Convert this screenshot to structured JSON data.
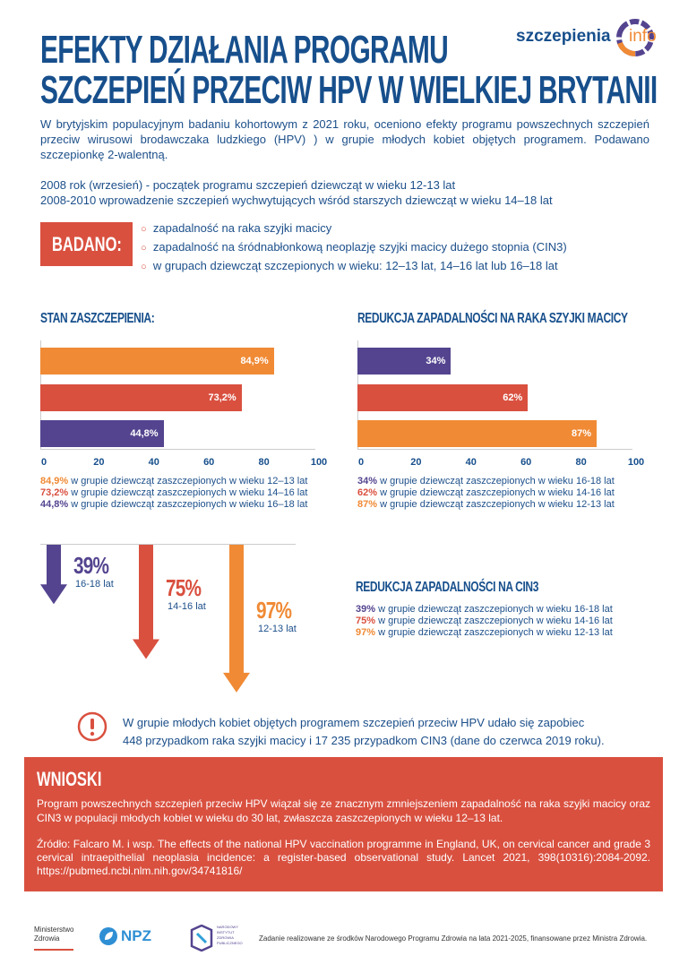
{
  "colors": {
    "blue": "#174f8c",
    "orange": "#f08a35",
    "red": "#d9503f",
    "purple": "#54448f"
  },
  "logo": {
    "text_main": "szczepienia",
    "text_accent": "info"
  },
  "title": {
    "line1": "EFEKTY DZIAŁANIA PROGRAMU",
    "line2": "SZCZEPIEŃ PRZECIW HPV W WIELKIEJ BRYTANII"
  },
  "intro": "W brytyjskim populacyjnym badaniu kohortowym z 2021 roku, oceniono efekty programu powszechnych szczepień przeciw wirusowi brodawczaka ludzkiego (HPV) ) w grupie młodych kobiet objętych programem. Podawano szczepionkę 2-walentną.",
  "timeline": [
    "2008 rok (wrzesień) - początek programu szczepień dziewcząt w wieku 12-13 lat",
    "2008-2010 wprowadzenie szczepień wychwytujących wśród starszych dziewcząt w wieku 14–18 lat"
  ],
  "badano": {
    "label": "BADANO:",
    "items": [
      "zapadalność na raka szyjki macicy",
      "zapadalność na śródnabłonkową neoplazję szyjki macicy dużego stopnia (CIN3)",
      "w grupach dziewcząt szczepionych w wieku: 12–13 lat, 14–16 lat lub 16–18 lat"
    ]
  },
  "chart_data": [
    {
      "type": "bar",
      "orientation": "horizontal",
      "title": "STAN ZASZCZEPIENIA:",
      "xlim": [
        0,
        100
      ],
      "ticks": [
        "0",
        "20",
        "40",
        "60",
        "80",
        "100"
      ],
      "bars": [
        {
          "value": 84.9,
          "label": "84,9%",
          "color": "#f08a35"
        },
        {
          "value": 73.2,
          "label": "73,2%",
          "color": "#d9503f"
        },
        {
          "value": 44.8,
          "label": "44,8%",
          "color": "#54448f"
        }
      ],
      "legend": [
        {
          "value": "84,9%",
          "text": "w grupie dziewcząt zaszczepionych w wieku 12–13 lat",
          "color": "#f08a35"
        },
        {
          "value": "73,2%",
          "text": "w grupie dziewcząt zaszczepionych w wieku 14–16 lat",
          "color": "#d9503f"
        },
        {
          "value": "44,8%",
          "text": "w grupie dziewcząt zaszczepionych w wieku 16–18 lat",
          "color": "#54448f"
        }
      ]
    },
    {
      "type": "bar",
      "orientation": "horizontal",
      "title": "REDUKCJA ZAPADALNOŚCI NA RAKA SZYJKI MACICY",
      "xlim": [
        0,
        100
      ],
      "ticks": [
        "0",
        "20",
        "40",
        "60",
        "80",
        "100"
      ],
      "bars": [
        {
          "value": 34,
          "label": "34%",
          "color": "#54448f"
        },
        {
          "value": 62,
          "label": "62%",
          "color": "#d9503f"
        },
        {
          "value": 87,
          "label": "87%",
          "color": "#f08a35"
        }
      ],
      "legend": [
        {
          "value": "34%",
          "text": "w grupie dziewcząt zaszczepionych w wieku 16-18 lat",
          "color": "#54448f"
        },
        {
          "value": "62%",
          "text": "w grupie dziewcząt zaszczepionych w wieku 14-16 lat",
          "color": "#d9503f"
        },
        {
          "value": "87%",
          "text": "w grupie dziewcząt zaszczepionych w wieku 12-13 lat",
          "color": "#f08a35"
        }
      ]
    },
    {
      "type": "bar",
      "orientation": "vertical-arrows",
      "title": "REDUKCJA ZAPADALNOŚCI NA CIN3",
      "bars": [
        {
          "value": 39,
          "label": "39%",
          "group": "16-18 lat",
          "color": "#54448f"
        },
        {
          "value": 75,
          "label": "75%",
          "group": "14-16 lat",
          "color": "#d9503f"
        },
        {
          "value": 97,
          "label": "97%",
          "group": "12-13 lat",
          "color": "#f08a35"
        }
      ],
      "legend": [
        {
          "value": "39%",
          "text": "w grupie dziewcząt zaszczepionych w wieku 16-18 lat",
          "color": "#54448f"
        },
        {
          "value": "75%",
          "text": "w grupie dziewcząt zaszczepionych w wieku 14-16 lat",
          "color": "#d9503f"
        },
        {
          "value": "97%",
          "text": "w grupie dziewcząt zaszczepionych w wieku 12-13 lat",
          "color": "#f08a35"
        }
      ]
    }
  ],
  "alert": {
    "icon": "exclamation-circle-icon",
    "line1": "W grupie młodych kobiet objętych programem szczepień przeciw HPV udało się zapobiec",
    "line2": "448 przypadkom raka szyjki macicy i 17 235 przypadkom CIN3 (dane do czerwca 2019 roku)."
  },
  "conclusions": {
    "title": "WNIOSKI",
    "text": "Program powszechnych szczepień przeciw HPV wiązał się ze znacznym zmniejszeniem zapadalność na raka szyjki macicy oraz CIN3 w populacji młodych kobiet w wieku do 30 lat, zwłaszcza zaszczepionych w wieku 12–13 lat.",
    "source": "Źródło: Falcaro M. i wsp. The effects of the national HPV vaccination programme in England, UK, on cervical cancer and grade 3 cervical intraepithelial neoplasia incidence: a register-based observational study. Lancet 2021, 398(10316):2084-2092. https://pubmed.ncbi.nlm.nih.gov/34741816/"
  },
  "footer": {
    "ministry": [
      "Ministerstwo",
      "Zdrowia"
    ],
    "npz": "NPZ",
    "nizp": "NARODOWY INSTYTUT ZDROWIA PUBLICZNEGO",
    "note": "Zadanie realizowane ze środków Narodowego Programu Zdrowia na lata 2021-2025, finansowane przez Ministra Zdrowia."
  }
}
